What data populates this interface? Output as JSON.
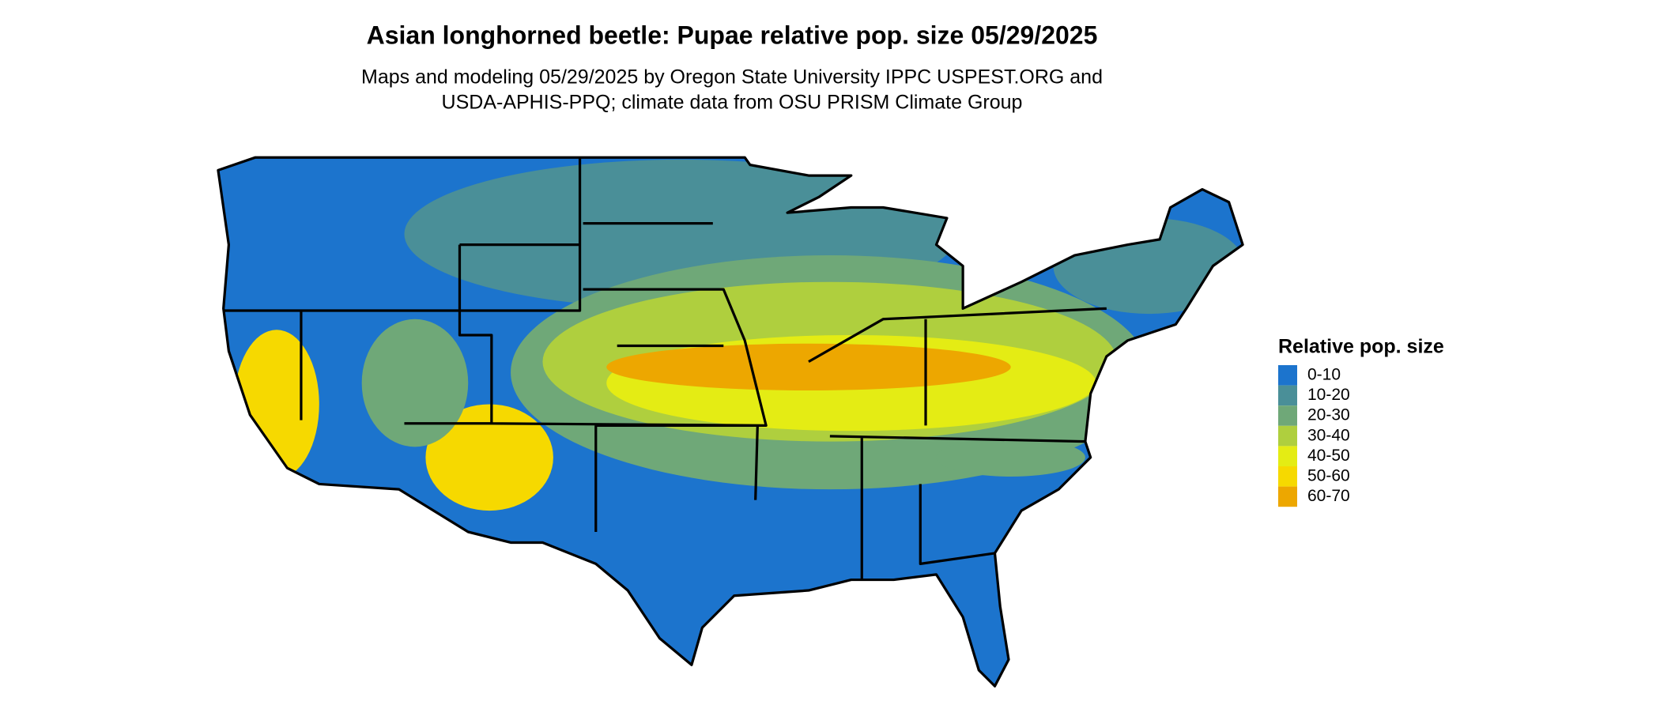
{
  "header": {
    "title": "Asian longhorned beetle: Pupae relative pop. size 05/29/2025",
    "subtitle": [
      "Maps and modeling 05/29/2025 by Oregon State University IPPC USPEST.ORG and",
      "USDA-APHIS-PPQ; climate data from OSU PRISM Climate Group"
    ]
  },
  "legend": {
    "title": "Relative pop. size",
    "items": [
      {
        "label": "0-10",
        "color": "#1c74cd"
      },
      {
        "label": "10-20",
        "color": "#4a8f98"
      },
      {
        "label": "20-30",
        "color": "#6fa878"
      },
      {
        "label": "30-40",
        "color": "#afcf3e"
      },
      {
        "label": "40-50",
        "color": "#e4ec14"
      },
      {
        "label": "50-60",
        "color": "#f6d900"
      },
      {
        "label": "60-70",
        "color": "#eda700"
      }
    ]
  }
}
